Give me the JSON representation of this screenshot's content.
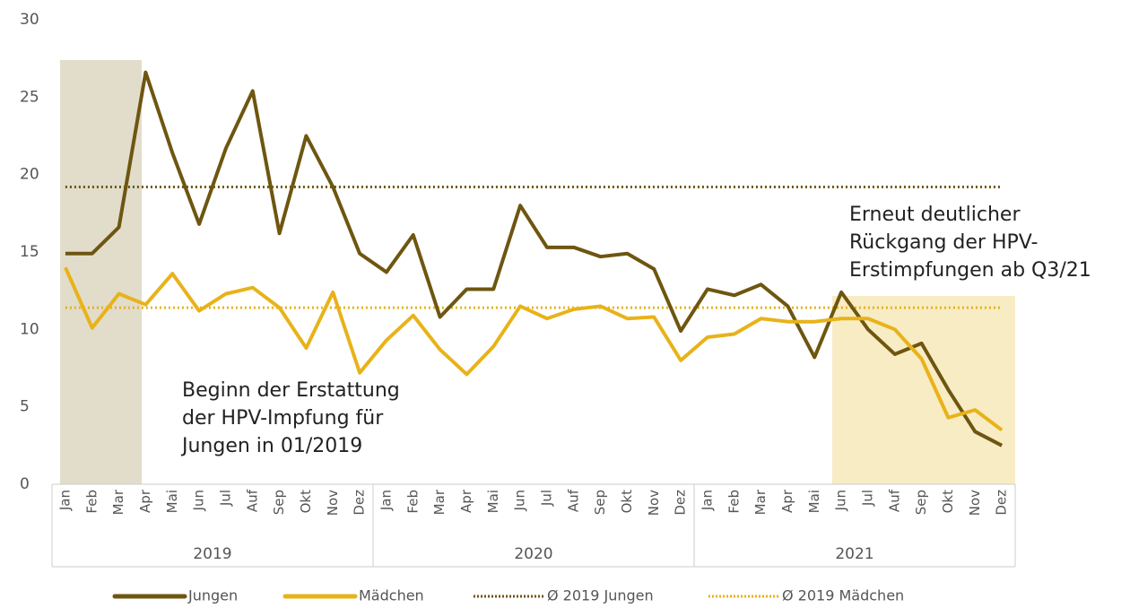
{
  "chart_data": {
    "type": "line",
    "categories": [
      "Jan",
      "Feb",
      "Mar",
      "Apr",
      "Mai",
      "Jun",
      "Jul",
      "Auf",
      "Sep",
      "Okt",
      "Nov",
      "Dez",
      "Jan",
      "Feb",
      "Mar",
      "Apr",
      "Mai",
      "Jun",
      "Jul",
      "Auf",
      "Sep",
      "Okt",
      "Nov",
      "Dez",
      "Jan",
      "Feb",
      "Mar",
      "Apr",
      "Mai",
      "Jun",
      "Jul",
      "Auf",
      "Sep",
      "Okt",
      "Nov",
      "Dez"
    ],
    "years": [
      "2019",
      "2020",
      "2021"
    ],
    "series": [
      {
        "name": "Jungen",
        "color": "#6e5610",
        "values": [
          14.9,
          14.9,
          16.6,
          26.6,
          21.4,
          16.8,
          21.7,
          25.4,
          16.2,
          22.5,
          19.2,
          14.9,
          13.7,
          16.1,
          10.8,
          12.6,
          12.6,
          18.0,
          15.3,
          15.3,
          14.7,
          14.9,
          13.9,
          9.9,
          12.6,
          12.2,
          12.9,
          11.5,
          8.2,
          12.4,
          10.0,
          8.4,
          9.1,
          6.1,
          3.4,
          2.5
        ]
      },
      {
        "name": "Mädchen",
        "color": "#e8b219",
        "values": [
          14.0,
          10.1,
          12.3,
          11.6,
          13.6,
          11.2,
          12.3,
          12.7,
          11.4,
          8.8,
          12.4,
          7.2,
          9.3,
          10.9,
          8.7,
          7.1,
          8.9,
          11.5,
          10.7,
          11.3,
          11.5,
          10.7,
          10.8,
          8.0,
          9.5,
          9.7,
          10.7,
          10.5,
          10.5,
          10.7,
          10.7,
          10.0,
          8.1,
          4.3,
          4.8,
          3.5
        ]
      }
    ],
    "reference_lines": [
      {
        "name": "Ø 2019 Jungen",
        "color": "#6e5610",
        "value": 19.2
      },
      {
        "name": "Ø 2019 Mädchen",
        "color": "#e8b219",
        "value": 11.4
      }
    ],
    "annotations": [
      [
        "Beginn der Erstattung",
        "der HPV-Impfung für",
        "Jungen in 01/2019"
      ],
      [
        "Erneut deutlicher",
        "Rückgang der HPV-",
        "Erstimpfungen ab Q3/21"
      ]
    ],
    "ylim": [
      0,
      30
    ],
    "yticks": [
      0,
      5,
      10,
      15,
      20,
      25,
      30
    ]
  }
}
